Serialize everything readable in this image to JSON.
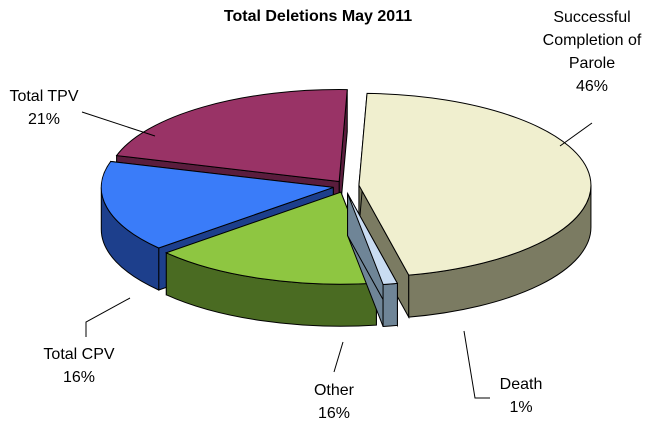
{
  "chart_data": {
    "type": "pie",
    "title": "Total Deletions May 2011",
    "slices": [
      {
        "label": "Successful Completion of Parole",
        "value": 46,
        "value_label": "46%",
        "color": "#f0efcf",
        "side_color": "#7b7b62"
      },
      {
        "label": "Death",
        "value": 1,
        "value_label": "1%",
        "color": "#c9dcf2",
        "side_color": "#6f8597"
      },
      {
        "label": "Other",
        "value": 16,
        "value_label": "16%",
        "color": "#8ec641",
        "side_color": "#4a6b22"
      },
      {
        "label": "Total CPV",
        "value": 16,
        "value_label": "16%",
        "color": "#3a7cf9",
        "side_color": "#1d3f8c"
      },
      {
        "label": "Total TPV",
        "value": 21,
        "value_label": "21%",
        "color": "#993366",
        "side_color": "#5a1d3d"
      }
    ],
    "label_lines": {
      "Successful Completion of Parole": [
        "Successful",
        "Completion  of",
        "Parole"
      ],
      "Death": [
        "Death"
      ],
      "Other": [
        "Other"
      ],
      "Total CPV": [
        "Total CPV"
      ],
      "Total TPV": [
        "Total TPV"
      ]
    }
  }
}
